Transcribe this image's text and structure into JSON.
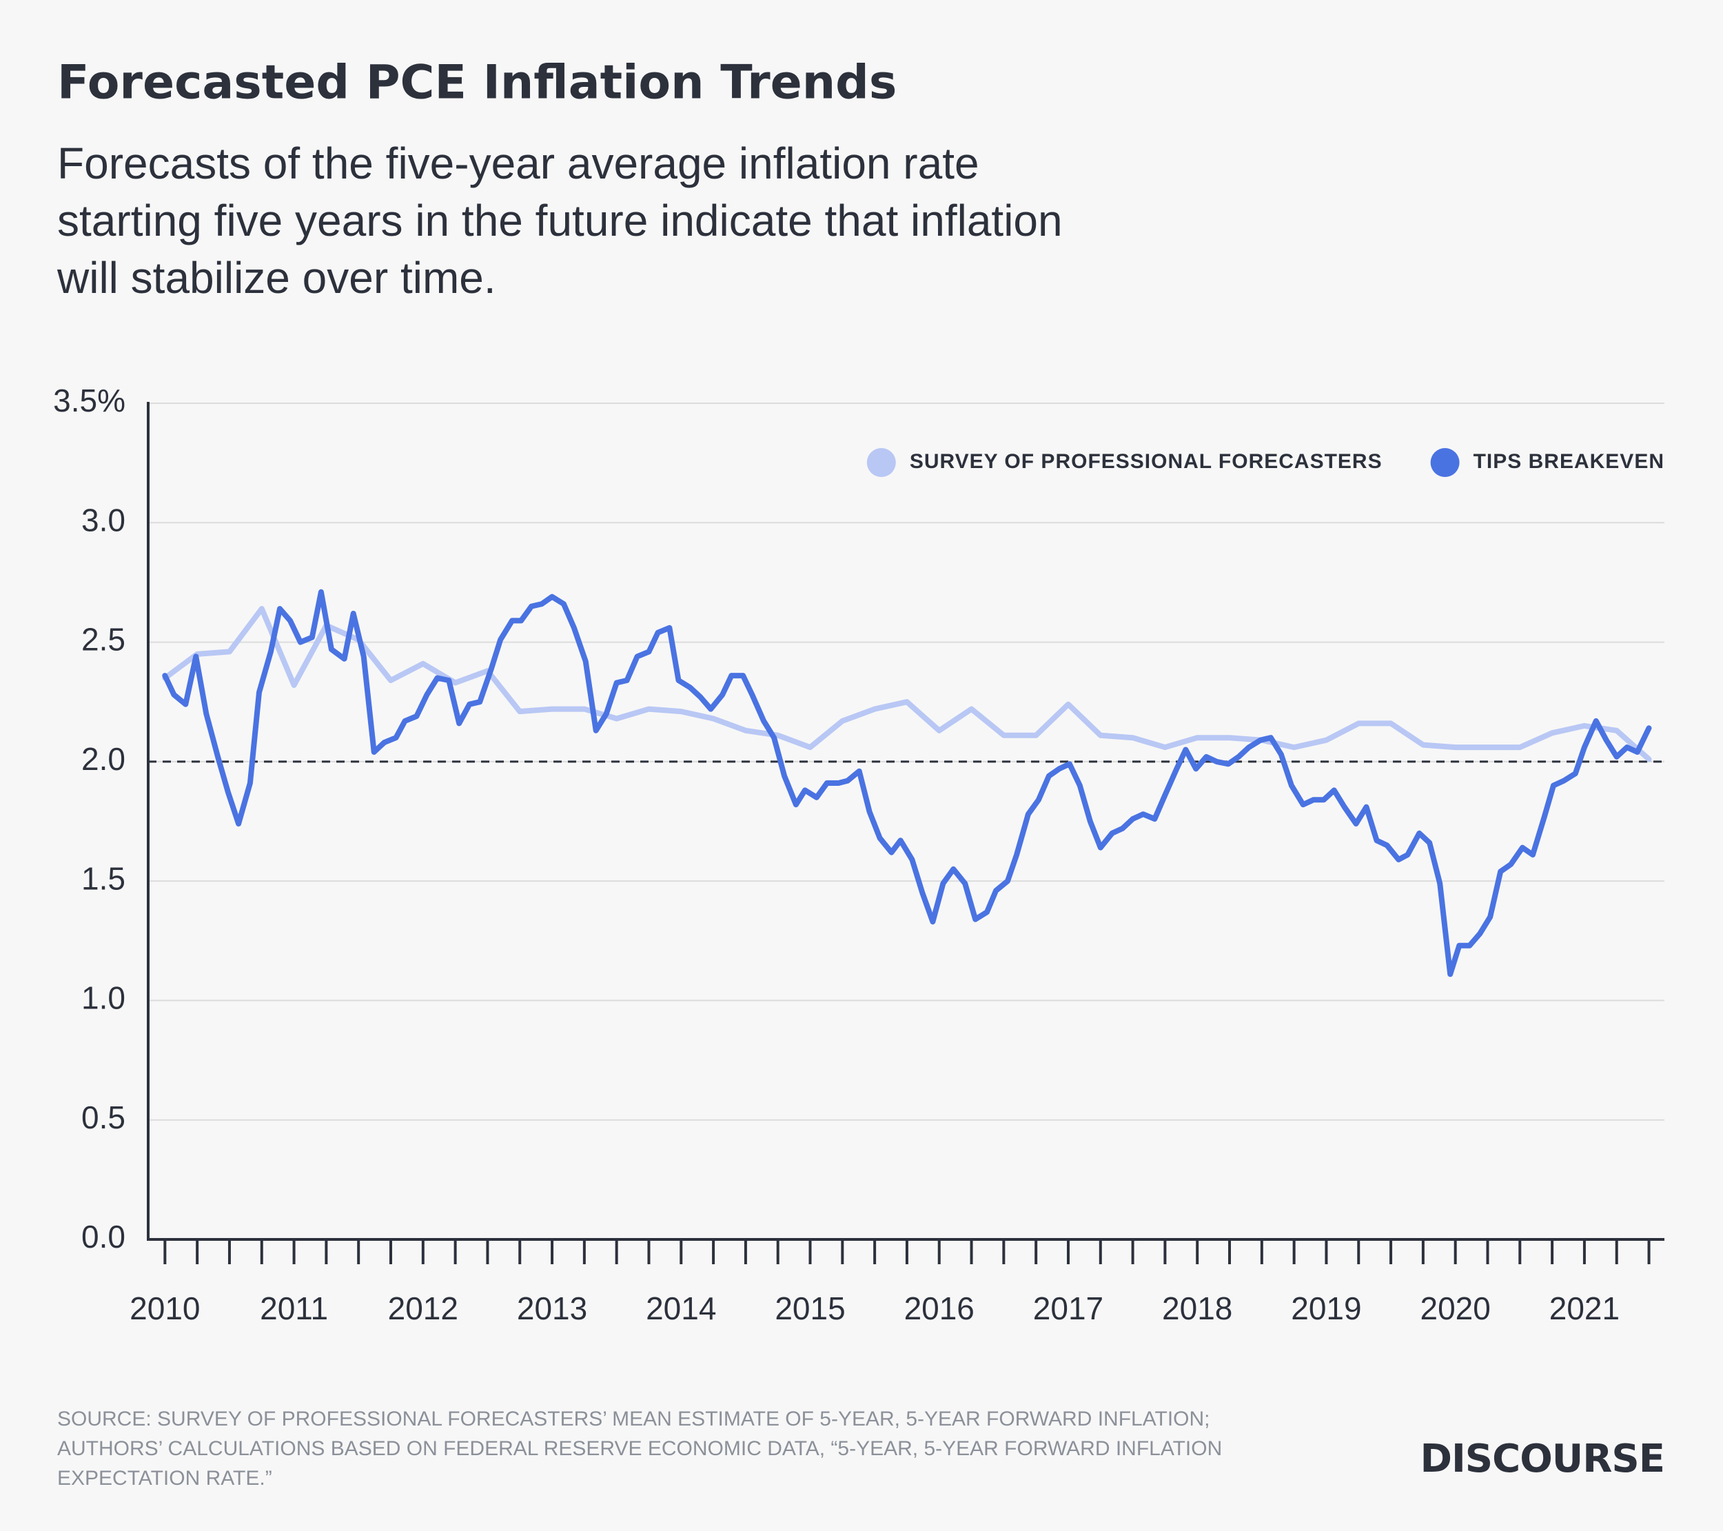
{
  "chart_data": {
    "type": "line",
    "title": "Forecasted PCE Inflation Trends",
    "subtitle": [
      "Forecasts of the five-year average inflation rate",
      "starting five years in the future indicate that inflation",
      "will stabilize over time."
    ],
    "series": [
      {
        "name": "SURVEY OF PROFESSIONAL FORECASTERS",
        "color": "#b8c7f4",
        "x": [
          2010,
          2010.25,
          2010.5,
          2010.75,
          2011,
          2011.25,
          2011.5,
          2011.75,
          2012,
          2012.25,
          2012.5,
          2012.75,
          2013,
          2013.25,
          2013.5,
          2013.75,
          2014,
          2014.25,
          2014.5,
          2014.75,
          2015,
          2015.25,
          2015.5,
          2015.75,
          2016,
          2016.25,
          2016.5,
          2016.75,
          2017,
          2017.25,
          2017.5,
          2017.75,
          2018,
          2018.25,
          2018.5,
          2018.75,
          2019,
          2019.25,
          2019.5,
          2019.75,
          2020,
          2020.25,
          2020.5,
          2020.75,
          2021,
          2021.25,
          2021.5
        ],
        "values": [
          2.35,
          2.45,
          2.46,
          2.64,
          2.32,
          2.57,
          2.51,
          2.34,
          2.41,
          2.33,
          2.38,
          2.21,
          2.22,
          2.22,
          2.18,
          2.22,
          2.21,
          2.18,
          2.13,
          2.11,
          2.06,
          2.17,
          2.22,
          2.25,
          2.13,
          2.22,
          2.11,
          2.11,
          2.24,
          2.11,
          2.1,
          2.06,
          2.1,
          2.1,
          2.09,
          2.06,
          2.09,
          2.16,
          2.16,
          2.07,
          2.06,
          2.06,
          2.06,
          2.12,
          2.15,
          2.13,
          2.01
        ]
      },
      {
        "name": "TIPS BREAKEVEN",
        "color": "#4a73e2",
        "x": [
          2010,
          2010.07,
          2010.16,
          2010.24,
          2010.32,
          2010.41,
          2010.49,
          2010.57,
          2010.66,
          2010.73,
          2010.82,
          2010.89,
          2010.97,
          2011.05,
          2011.14,
          2011.21,
          2011.29,
          2011.39,
          2011.46,
          2011.54,
          2011.62,
          2011.7,
          2011.79,
          2011.86,
          2011.95,
          2012.03,
          2012.11,
          2012.2,
          2012.28,
          2012.36,
          2012.44,
          2012.53,
          2012.6,
          2012.69,
          2012.76,
          2012.84,
          2012.92,
          2013,
          2013.09,
          2013.17,
          2013.26,
          2013.34,
          2013.42,
          2013.5,
          2013.58,
          2013.66,
          2013.75,
          2013.82,
          2013.91,
          2013.98,
          2014.07,
          2014.15,
          2014.23,
          2014.32,
          2014.39,
          2014.48,
          2014.55,
          2014.64,
          2014.72,
          2014.8,
          2014.89,
          2014.96,
          2015.05,
          2015.13,
          2015.22,
          2015.29,
          2015.38,
          2015.46,
          2015.54,
          2015.63,
          2015.7,
          2015.79,
          2015.87,
          2015.95,
          2016.03,
          2016.11,
          2016.2,
          2016.28,
          2016.37,
          2016.44,
          2016.53,
          2016.6,
          2016.69,
          2016.77,
          2016.85,
          2016.93,
          2017.01,
          2017.09,
          2017.17,
          2017.25,
          2017.34,
          2017.42,
          2017.5,
          2017.58,
          2017.67,
          2017.75,
          2017.84,
          2017.91,
          2017.99,
          2018.07,
          2018.15,
          2018.24,
          2018.32,
          2018.4,
          2018.49,
          2018.57,
          2018.65,
          2018.73,
          2018.82,
          2018.9,
          2018.98,
          2019.06,
          2019.14,
          2019.23,
          2019.31,
          2019.39,
          2019.47,
          2019.56,
          2019.63,
          2019.72,
          2019.8,
          2019.88,
          2019.96,
          2020.03,
          2020.11,
          2020.19,
          2020.27,
          2020.35,
          2020.43,
          2020.52,
          2020.6,
          2020.69,
          2020.76,
          2020.84,
          2020.93,
          2021,
          2021.09,
          2021.17,
          2021.25,
          2021.33,
          2021.41,
          2021.5
        ],
        "values": [
          2.36,
          2.28,
          2.24,
          2.44,
          2.2,
          2.02,
          1.87,
          1.74,
          1.91,
          2.29,
          2.46,
          2.64,
          2.59,
          2.5,
          2.52,
          2.71,
          2.47,
          2.43,
          2.62,
          2.44,
          2.04,
          2.08,
          2.1,
          2.17,
          2.19,
          2.28,
          2.35,
          2.34,
          2.16,
          2.24,
          2.25,
          2.39,
          2.51,
          2.59,
          2.59,
          2.65,
          2.66,
          2.69,
          2.66,
          2.56,
          2.42,
          2.13,
          2.2,
          2.33,
          2.34,
          2.44,
          2.46,
          2.54,
          2.56,
          2.34,
          2.31,
          2.27,
          2.22,
          2.28,
          2.36,
          2.36,
          2.28,
          2.17,
          2.1,
          1.94,
          1.82,
          1.88,
          1.85,
          1.91,
          1.91,
          1.92,
          1.96,
          1.79,
          1.68,
          1.62,
          1.67,
          1.59,
          1.45,
          1.33,
          1.49,
          1.55,
          1.49,
          1.34,
          1.37,
          1.46,
          1.5,
          1.61,
          1.78,
          1.84,
          1.94,
          1.97,
          1.99,
          1.9,
          1.75,
          1.64,
          1.7,
          1.72,
          1.76,
          1.78,
          1.76,
          1.86,
          1.97,
          2.05,
          1.97,
          2.02,
          2,
          1.99,
          2.02,
          2.06,
          2.09,
          2.1,
          2.03,
          1.9,
          1.82,
          1.84,
          1.84,
          1.88,
          1.81,
          1.74,
          1.81,
          1.67,
          1.65,
          1.59,
          1.61,
          1.7,
          1.66,
          1.49,
          1.11,
          1.23,
          1.23,
          1.28,
          1.35,
          1.54,
          1.57,
          1.64,
          1.61,
          1.77,
          1.9,
          1.92,
          1.95,
          2.06,
          2.17,
          2.09,
          2.02,
          2.06,
          2.04,
          2.14
        ]
      }
    ],
    "xlim": [
      2009.87,
      2021.62
    ],
    "xticks": [
      2010,
      2011,
      2012,
      2013,
      2014,
      2015,
      2016,
      2017,
      2018,
      2019,
      2020,
      2021
    ],
    "minor_xticks": [
      2010.25,
      2010.5,
      2010.75,
      2011.25,
      2011.5,
      2011.75,
      2012.25,
      2012.5,
      2012.75,
      2013.25,
      2013.5,
      2013.75,
      2014.25,
      2014.5,
      2014.75,
      2015.25,
      2015.5,
      2015.75,
      2016.25,
      2016.5,
      2016.75,
      2017.25,
      2017.5,
      2017.75,
      2018.25,
      2018.5,
      2018.75,
      2019.25,
      2019.5,
      2019.75,
      2020.25,
      2020.5,
      2020.75,
      2021.25,
      2021.5
    ],
    "ylim": [
      0,
      3.5
    ],
    "yticks": [
      {
        "value": 0,
        "label": "0.0"
      },
      0.5,
      {
        "value": 1,
        "label": "1.0"
      },
      1.5,
      {
        "value": 2,
        "label": "2.0"
      },
      2.5,
      {
        "value": 3,
        "label": "3.0"
      },
      {
        "value": 3.5,
        "label": "3.5%"
      }
    ],
    "reference_line": 2,
    "grid": true,
    "legend": "top-right",
    "source": [
      "SOURCE: SURVEY OF PROFESSIONAL FORECASTERS’ MEAN ESTIMATE OF 5-YEAR, 5-YEAR FORWARD INFLATION;",
      "AUTHORS’ CALCULATIONS BASED ON FEDERAL RESERVE ECONOMIC DATA, “5-YEAR, 5-YEAR FORWARD INFLATION",
      "EXPECTATION RATE.”"
    ],
    "brand": "DISCOURSE"
  }
}
